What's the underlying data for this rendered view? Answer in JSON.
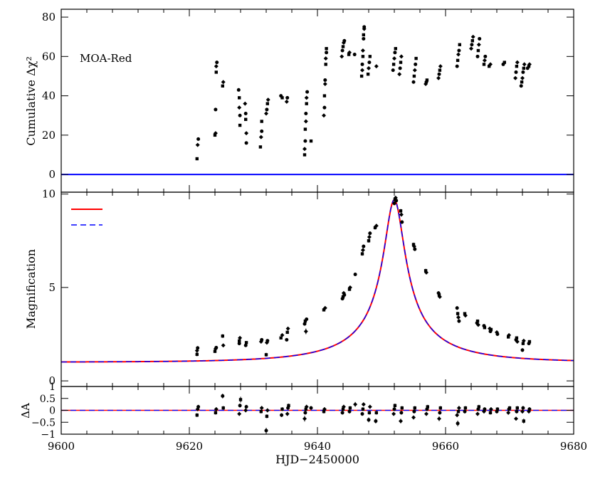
{
  "panel_label": "MOA-Red",
  "chart_data": [
    {
      "id": "cumulative",
      "type": "scatter",
      "ylabel": "Cumulative Δχ²",
      "xlim": [
        9600,
        9680
      ],
      "ylim": [
        -9,
        84
      ],
      "yticks": [
        0,
        20,
        40,
        60,
        80
      ],
      "zero_line_color": "#0000ff",
      "points": [
        [
          9621.2,
          8
        ],
        [
          9621.3,
          15
        ],
        [
          9621.4,
          18
        ],
        [
          9624.0,
          20
        ],
        [
          9624.1,
          21
        ],
        [
          9624.1,
          33
        ],
        [
          9624.2,
          52
        ],
        [
          9624.2,
          55
        ],
        [
          9624.3,
          57
        ],
        [
          9625.2,
          45
        ],
        [
          9625.3,
          47
        ],
        [
          9627.7,
          43
        ],
        [
          9627.8,
          39
        ],
        [
          9627.8,
          34
        ],
        [
          9627.9,
          30
        ],
        [
          9627.9,
          25
        ],
        [
          9628.7,
          36
        ],
        [
          9628.8,
          31
        ],
        [
          9628.8,
          28
        ],
        [
          9628.9,
          21
        ],
        [
          9628.9,
          16
        ],
        [
          9631.1,
          14
        ],
        [
          9631.2,
          19
        ],
        [
          9631.3,
          22
        ],
        [
          9631.3,
          27
        ],
        [
          9632.0,
          31
        ],
        [
          9632.1,
          33
        ],
        [
          9632.2,
          36
        ],
        [
          9632.3,
          38
        ],
        [
          9634.3,
          40
        ],
        [
          9634.5,
          39
        ],
        [
          9635.2,
          37
        ],
        [
          9635.3,
          39
        ],
        [
          9638.0,
          10
        ],
        [
          9638.0,
          13
        ],
        [
          9638.1,
          17
        ],
        [
          9638.1,
          23
        ],
        [
          9638.2,
          27
        ],
        [
          9638.2,
          31
        ],
        [
          9638.3,
          36
        ],
        [
          9638.3,
          39
        ],
        [
          9638.4,
          42
        ],
        [
          9639.0,
          17
        ],
        [
          9641.0,
          30
        ],
        [
          9641.1,
          34
        ],
        [
          9641.1,
          40
        ],
        [
          9641.2,
          46
        ],
        [
          9641.2,
          48
        ],
        [
          9641.3,
          56
        ],
        [
          9641.3,
          59
        ],
        [
          9641.4,
          62
        ],
        [
          9641.4,
          64
        ],
        [
          9643.8,
          60
        ],
        [
          9643.9,
          63
        ],
        [
          9644.0,
          65
        ],
        [
          9644.1,
          67
        ],
        [
          9644.2,
          68
        ],
        [
          9644.9,
          61
        ],
        [
          9645.0,
          62
        ],
        [
          9645.8,
          61
        ],
        [
          9646.9,
          50
        ],
        [
          9647.0,
          53
        ],
        [
          9647.0,
          56
        ],
        [
          9647.1,
          60
        ],
        [
          9647.1,
          63
        ],
        [
          9647.2,
          69
        ],
        [
          9647.2,
          71
        ],
        [
          9647.3,
          74
        ],
        [
          9647.3,
          75
        ],
        [
          9647.9,
          51
        ],
        [
          9648.0,
          54
        ],
        [
          9648.1,
          57
        ],
        [
          9648.2,
          60
        ],
        [
          9649.2,
          55
        ],
        [
          9651.8,
          53
        ],
        [
          9651.9,
          56
        ],
        [
          9652.0,
          59
        ],
        [
          9652.1,
          62
        ],
        [
          9652.2,
          64
        ],
        [
          9652.8,
          51
        ],
        [
          9652.9,
          54
        ],
        [
          9653.0,
          57
        ],
        [
          9653.1,
          60
        ],
        [
          9655.0,
          47
        ],
        [
          9655.1,
          50
        ],
        [
          9655.2,
          53
        ],
        [
          9655.3,
          56
        ],
        [
          9655.4,
          59
        ],
        [
          9656.9,
          46
        ],
        [
          9657.0,
          47
        ],
        [
          9657.1,
          48
        ],
        [
          9658.9,
          49
        ],
        [
          9659.0,
          51
        ],
        [
          9659.1,
          53
        ],
        [
          9659.2,
          55
        ],
        [
          9661.8,
          55
        ],
        [
          9661.9,
          58
        ],
        [
          9662.0,
          61
        ],
        [
          9662.1,
          63
        ],
        [
          9662.2,
          66
        ],
        [
          9664.0,
          64
        ],
        [
          9664.1,
          66
        ],
        [
          9664.2,
          68
        ],
        [
          9664.3,
          70
        ],
        [
          9665.0,
          60
        ],
        [
          9665.1,
          63
        ],
        [
          9665.2,
          66
        ],
        [
          9665.3,
          69
        ],
        [
          9666.0,
          56
        ],
        [
          9666.1,
          58
        ],
        [
          9666.2,
          60
        ],
        [
          9666.8,
          55
        ],
        [
          9667.0,
          56
        ],
        [
          9669.0,
          56
        ],
        [
          9669.2,
          57
        ],
        [
          9670.9,
          49
        ],
        [
          9671.0,
          52
        ],
        [
          9671.1,
          55
        ],
        [
          9671.2,
          57
        ],
        [
          9671.8,
          45
        ],
        [
          9671.9,
          47
        ],
        [
          9672.0,
          49
        ],
        [
          9672.1,
          52
        ],
        [
          9672.2,
          54
        ],
        [
          9672.3,
          56
        ],
        [
          9672.8,
          54
        ],
        [
          9673.0,
          55
        ],
        [
          9673.1,
          56
        ]
      ]
    },
    {
      "id": "magnification",
      "type": "line",
      "ylabel": "Magnification",
      "xlim": [
        9600,
        9680
      ],
      "ylim": [
        -0.3,
        10.1
      ],
      "yticks": [
        0,
        5,
        10
      ],
      "model": {
        "t0": 9652.0,
        "u0": 0.1035,
        "tE": 16.0
      },
      "series": [
        {
          "name": "",
          "color": "#ff0000",
          "dash": "none"
        },
        {
          "name": "",
          "color": "#0000ff",
          "dash": "8,5"
        }
      ],
      "points": [
        [
          9621.2,
          1.42,
          0.1
        ],
        [
          9621.2,
          1.62,
          0.1
        ],
        [
          9621.3,
          1.76,
          0.1
        ],
        [
          9624.0,
          1.58,
          0.08
        ],
        [
          9624.1,
          1.72,
          0.08
        ],
        [
          9624.2,
          1.78,
          0.08
        ],
        [
          9625.2,
          2.4,
          0.1
        ],
        [
          9625.3,
          1.9,
          0.08
        ],
        [
          9627.8,
          2.0,
          0.08
        ],
        [
          9627.8,
          2.14,
          0.08
        ],
        [
          9627.9,
          2.3,
          0.08
        ],
        [
          9628.8,
          1.9,
          0.08
        ],
        [
          9628.9,
          2.05,
          0.08
        ],
        [
          9631.2,
          2.1,
          0.08
        ],
        [
          9631.3,
          2.2,
          0.08
        ],
        [
          9632.0,
          1.4,
          0.1
        ],
        [
          9632.1,
          2.05,
          0.08
        ],
        [
          9632.2,
          2.15,
          0.08
        ],
        [
          9634.3,
          2.3,
          0.08
        ],
        [
          9634.5,
          2.45,
          0.08
        ],
        [
          9635.2,
          2.2,
          0.08
        ],
        [
          9635.3,
          2.6,
          0.08
        ],
        [
          9635.4,
          2.8,
          0.08
        ],
        [
          9638.0,
          3.05,
          0.08
        ],
        [
          9638.1,
          3.2,
          0.08
        ],
        [
          9638.2,
          2.65,
          0.15
        ],
        [
          9638.3,
          3.3,
          0.08
        ],
        [
          9641.0,
          3.8,
          0.08
        ],
        [
          9641.2,
          3.9,
          0.08
        ],
        [
          9643.9,
          4.4,
          0.08
        ],
        [
          9644.0,
          4.5,
          0.08
        ],
        [
          9644.1,
          4.7,
          0.08
        ],
        [
          9644.2,
          4.6,
          0.08
        ],
        [
          9645.0,
          4.9,
          0.08
        ],
        [
          9645.1,
          5.0,
          0.08
        ],
        [
          9645.9,
          5.7,
          0.08
        ],
        [
          9647.0,
          6.8,
          0.1
        ],
        [
          9647.1,
          7.0,
          0.1
        ],
        [
          9647.2,
          7.2,
          0.1
        ],
        [
          9648.0,
          7.5,
          0.1
        ],
        [
          9648.1,
          7.7,
          0.1
        ],
        [
          9648.2,
          7.9,
          0.1
        ],
        [
          9649.0,
          8.2,
          0.1
        ],
        [
          9649.2,
          8.3,
          0.1
        ],
        [
          9652.0,
          9.5,
          0.1
        ],
        [
          9652.1,
          9.7,
          0.1
        ],
        [
          9652.2,
          9.8,
          0.1
        ],
        [
          9652.3,
          9.65,
          0.1
        ],
        [
          9653.0,
          9.1,
          0.1
        ],
        [
          9653.1,
          8.9,
          0.1
        ],
        [
          9653.2,
          8.5,
          0.1
        ],
        [
          9655.0,
          7.3,
          0.1
        ],
        [
          9655.1,
          7.2,
          0.1
        ],
        [
          9655.2,
          7.05,
          0.1
        ],
        [
          9656.9,
          5.9,
          0.1
        ],
        [
          9657.0,
          5.8,
          0.1
        ],
        [
          9658.9,
          4.7,
          0.1
        ],
        [
          9659.0,
          4.6,
          0.1
        ],
        [
          9659.1,
          4.5,
          0.1
        ],
        [
          9661.8,
          3.9,
          0.1
        ],
        [
          9661.9,
          3.6,
          0.1
        ],
        [
          9662.0,
          3.4,
          0.1
        ],
        [
          9662.1,
          3.2,
          0.1
        ],
        [
          9663.0,
          3.6,
          0.08
        ],
        [
          9663.1,
          3.5,
          0.08
        ],
        [
          9664.9,
          3.1,
          0.08
        ],
        [
          9665.0,
          3.2,
          0.08
        ],
        [
          9665.1,
          3.0,
          0.08
        ],
        [
          9666.0,
          2.95,
          0.08
        ],
        [
          9666.1,
          2.85,
          0.08
        ],
        [
          9666.9,
          2.8,
          0.08
        ],
        [
          9667.0,
          2.65,
          0.08
        ],
        [
          9667.1,
          2.75,
          0.08
        ],
        [
          9668.0,
          2.6,
          0.08
        ],
        [
          9668.1,
          2.5,
          0.08
        ],
        [
          9669.8,
          2.35,
          0.08
        ],
        [
          9669.9,
          2.45,
          0.08
        ],
        [
          9671.0,
          2.2,
          0.08
        ],
        [
          9671.1,
          2.3,
          0.08
        ],
        [
          9671.2,
          2.1,
          0.08
        ],
        [
          9672.0,
          1.65,
          0.1
        ],
        [
          9672.1,
          2.0,
          0.08
        ],
        [
          9672.2,
          2.15,
          0.08
        ],
        [
          9673.0,
          2.0,
          0.08
        ],
        [
          9673.1,
          2.1,
          0.08
        ]
      ]
    },
    {
      "id": "residuals",
      "type": "scatter",
      "ylabel": "ΔA",
      "xlabel": "HJD−2450000",
      "xlim": [
        9600,
        9680
      ],
      "ylim": [
        -1.0,
        1.0
      ],
      "yticks": [
        -1,
        -0.5,
        0,
        0.5,
        1
      ],
      "ytick_labels": [
        "−1",
        "−0.5",
        "0",
        "0.5",
        "1"
      ],
      "xticks": [
        9600,
        9620,
        9640,
        9660,
        9680
      ],
      "points": [
        [
          9621.2,
          -0.2,
          0.08
        ],
        [
          9621.3,
          0.05,
          0.08
        ],
        [
          9621.4,
          0.15,
          0.08
        ],
        [
          9624.1,
          -0.1,
          0.08
        ],
        [
          9624.2,
          0.05,
          0.08
        ],
        [
          9625.2,
          0.6,
          0.1
        ],
        [
          9625.3,
          0.1,
          0.08
        ],
        [
          9627.8,
          -0.15,
          0.08
        ],
        [
          9627.9,
          0.2,
          0.08
        ],
        [
          9628.0,
          0.45,
          0.12
        ],
        [
          9628.8,
          0.0,
          0.08
        ],
        [
          9628.9,
          0.15,
          0.08
        ],
        [
          9631.2,
          -0.05,
          0.08
        ],
        [
          9631.3,
          0.1,
          0.08
        ],
        [
          9632.0,
          -0.85,
          0.12
        ],
        [
          9632.1,
          -0.25,
          0.08
        ],
        [
          9632.2,
          0.0,
          0.08
        ],
        [
          9634.4,
          -0.2,
          0.08
        ],
        [
          9634.5,
          0.05,
          0.08
        ],
        [
          9635.3,
          -0.15,
          0.08
        ],
        [
          9635.4,
          0.1,
          0.08
        ],
        [
          9635.5,
          0.2,
          0.08
        ],
        [
          9638.0,
          -0.35,
          0.12
        ],
        [
          9638.1,
          -0.1,
          0.08
        ],
        [
          9638.2,
          0.05,
          0.08
        ],
        [
          9638.3,
          0.15,
          0.08
        ],
        [
          9639.0,
          0.1,
          0.08
        ],
        [
          9641.0,
          -0.05,
          0.08
        ],
        [
          9641.1,
          0.05,
          0.08
        ],
        [
          9643.9,
          -0.1,
          0.08
        ],
        [
          9644.0,
          0.05,
          0.08
        ],
        [
          9644.1,
          0.15,
          0.08
        ],
        [
          9645.0,
          -0.05,
          0.08
        ],
        [
          9645.1,
          0.1,
          0.08
        ],
        [
          9645.9,
          0.25,
          0.1
        ],
        [
          9647.0,
          -0.15,
          0.08
        ],
        [
          9647.1,
          0.05,
          0.08
        ],
        [
          9647.2,
          0.25,
          0.08
        ],
        [
          9648.0,
          -0.4,
          0.1
        ],
        [
          9648.1,
          -0.1,
          0.08
        ],
        [
          9648.2,
          0.15,
          0.08
        ],
        [
          9649.1,
          -0.45,
          0.1
        ],
        [
          9649.2,
          -0.1,
          0.08
        ],
        [
          9651.9,
          -0.15,
          0.08
        ],
        [
          9652.0,
          0.05,
          0.08
        ],
        [
          9652.1,
          0.2,
          0.08
        ],
        [
          9653.0,
          -0.45,
          0.1
        ],
        [
          9653.1,
          -0.1,
          0.08
        ],
        [
          9653.2,
          0.1,
          0.08
        ],
        [
          9655.0,
          -0.3,
          0.08
        ],
        [
          9655.1,
          -0.05,
          0.08
        ],
        [
          9655.2,
          0.1,
          0.08
        ],
        [
          9657.0,
          -0.15,
          0.08
        ],
        [
          9657.1,
          0.05,
          0.08
        ],
        [
          9657.2,
          0.15,
          0.08
        ],
        [
          9659.0,
          -0.35,
          0.1
        ],
        [
          9659.1,
          -0.1,
          0.08
        ],
        [
          9659.2,
          0.1,
          0.08
        ],
        [
          9661.8,
          -0.2,
          0.08
        ],
        [
          9661.9,
          -0.55,
          0.12
        ],
        [
          9662.0,
          -0.05,
          0.08
        ],
        [
          9662.1,
          0.1,
          0.08
        ],
        [
          9663.0,
          -0.05,
          0.08
        ],
        [
          9663.1,
          0.1,
          0.08
        ],
        [
          9665.0,
          -0.15,
          0.08
        ],
        [
          9665.1,
          0.05,
          0.08
        ],
        [
          9665.2,
          0.15,
          0.08
        ],
        [
          9666.0,
          -0.05,
          0.08
        ],
        [
          9666.1,
          0.05,
          0.08
        ],
        [
          9667.0,
          -0.1,
          0.08
        ],
        [
          9667.1,
          0.05,
          0.08
        ],
        [
          9668.0,
          -0.05,
          0.08
        ],
        [
          9668.1,
          0.05,
          0.08
        ],
        [
          9669.8,
          -0.1,
          0.08
        ],
        [
          9669.9,
          0.05,
          0.08
        ],
        [
          9670.0,
          0.1,
          0.08
        ],
        [
          9671.0,
          -0.35,
          0.08
        ],
        [
          9671.1,
          -0.05,
          0.08
        ],
        [
          9671.2,
          0.1,
          0.08
        ],
        [
          9672.0,
          -0.05,
          0.08
        ],
        [
          9672.1,
          0.1,
          0.08
        ],
        [
          9672.2,
          -0.45,
          0.1
        ],
        [
          9673.0,
          -0.05,
          0.08
        ],
        [
          9673.1,
          0.05,
          0.08
        ]
      ]
    }
  ]
}
